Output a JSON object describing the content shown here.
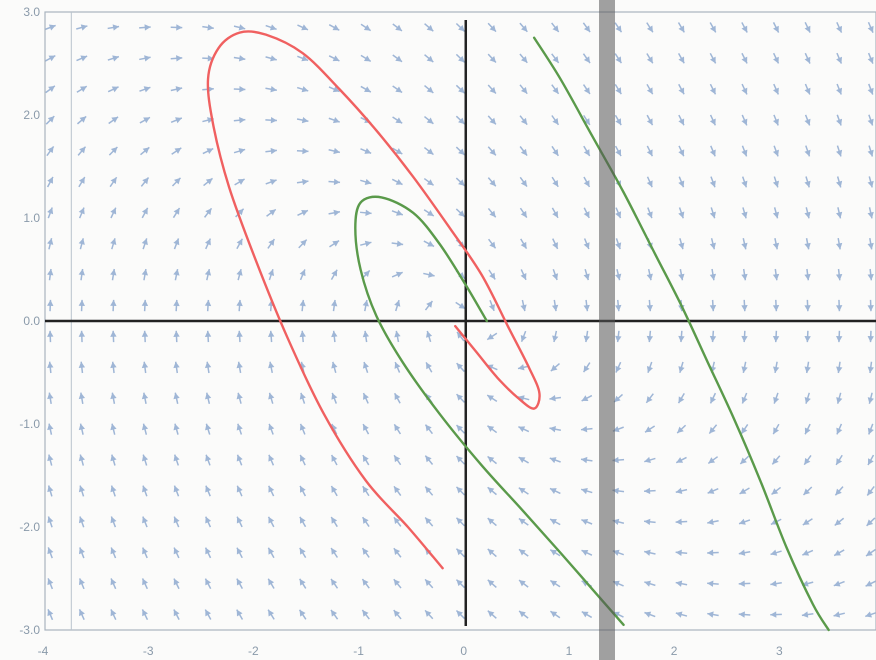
{
  "chart_data": {
    "type": "vector-field",
    "title": "",
    "xlabel": "",
    "ylabel": "",
    "xlim": [
      -4,
      3.9
    ],
    "ylim": [
      -3,
      3
    ],
    "x_tick_labels": [
      "-4",
      "-3",
      "-2",
      "-1",
      "0",
      "1",
      "2",
      "3"
    ],
    "y_tick_labels": [
      "3.0",
      "2.0",
      "1.0",
      "0.0",
      "-1.0",
      "-2.0",
      "-3.0"
    ],
    "x_ticks": [
      -4,
      -3,
      -2,
      -1,
      0,
      1,
      2,
      3
    ],
    "y_ticks": [
      3,
      2,
      1,
      0,
      -1,
      -2,
      -3
    ],
    "grid": false,
    "field": {
      "arrow_color": "#9fb6d6",
      "x_spacing": 0.3,
      "y_spacing": 0.3,
      "dx_equation": "y",
      "dy_equation": "-x - y"
    },
    "trajectories": [
      {
        "color": "#f06060",
        "points": [
          [
            -0.1,
            -0.05
          ],
          [
            0.1,
            -0.3
          ],
          [
            0.3,
            -0.55
          ],
          [
            0.5,
            -0.75
          ],
          [
            0.65,
            -0.85
          ],
          [
            0.7,
            -0.7
          ],
          [
            0.6,
            -0.45
          ],
          [
            0.4,
            -0.05
          ],
          [
            0.15,
            0.45
          ],
          [
            -0.15,
            0.9
          ],
          [
            -0.5,
            1.4
          ],
          [
            -0.85,
            1.85
          ],
          [
            -1.2,
            2.25
          ],
          [
            -1.55,
            2.6
          ],
          [
            -1.9,
            2.78
          ],
          [
            -2.15,
            2.8
          ],
          [
            -2.35,
            2.65
          ],
          [
            -2.45,
            2.35
          ],
          [
            -2.4,
            1.9
          ],
          [
            -2.25,
            1.3
          ],
          [
            -2.0,
            0.6
          ],
          [
            -1.7,
            -0.15
          ],
          [
            -1.35,
            -0.9
          ],
          [
            -0.95,
            -1.55
          ],
          [
            -0.55,
            -2.0
          ],
          [
            -0.22,
            -2.4
          ]
        ]
      },
      {
        "color": "#5a9a4a",
        "points": [
          [
            0.2,
            0.0
          ],
          [
            0.0,
            0.35
          ],
          [
            -0.25,
            0.75
          ],
          [
            -0.5,
            1.05
          ],
          [
            -0.8,
            1.2
          ],
          [
            -1.0,
            1.15
          ],
          [
            -1.05,
            0.9
          ],
          [
            -1.0,
            0.5
          ],
          [
            -0.85,
            0.05
          ],
          [
            -0.6,
            -0.4
          ],
          [
            -0.25,
            -0.9
          ],
          [
            0.15,
            -1.4
          ],
          [
            0.55,
            -1.85
          ],
          [
            0.9,
            -2.25
          ],
          [
            1.2,
            -2.6
          ],
          [
            1.5,
            -2.95
          ]
        ]
      },
      {
        "color": "#5a9a4a",
        "points": [
          [
            0.65,
            2.75
          ],
          [
            0.9,
            2.35
          ],
          [
            1.2,
            1.8
          ],
          [
            1.5,
            1.25
          ],
          [
            1.8,
            0.65
          ],
          [
            2.05,
            0.15
          ],
          [
            2.3,
            -0.4
          ],
          [
            2.55,
            -0.95
          ],
          [
            2.8,
            -1.55
          ],
          [
            3.05,
            -2.2
          ],
          [
            3.3,
            -2.75
          ],
          [
            3.45,
            -3.0
          ]
        ]
      }
    ]
  }
}
